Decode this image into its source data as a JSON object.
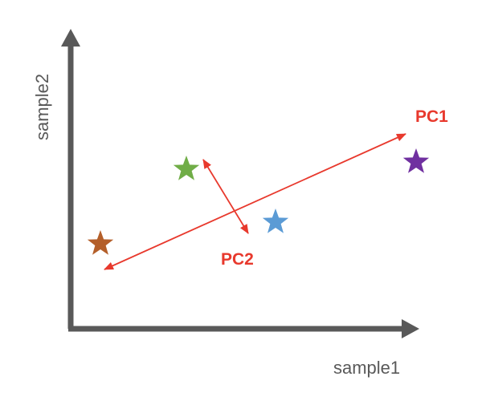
{
  "axes": {
    "x_label": "sample1",
    "y_label": "sample2",
    "color": "#595959"
  },
  "points": [
    {
      "name": "brown-star",
      "color": "#B45F2A"
    },
    {
      "name": "green-star",
      "color": "#70AD47"
    },
    {
      "name": "blue-star",
      "color": "#5B9BD5"
    },
    {
      "name": "purple-star",
      "color": "#7030A0"
    }
  ],
  "principal_components": [
    {
      "label": "PC1",
      "color": "#E8392D"
    },
    {
      "label": "PC2",
      "color": "#E8392D"
    }
  ]
}
